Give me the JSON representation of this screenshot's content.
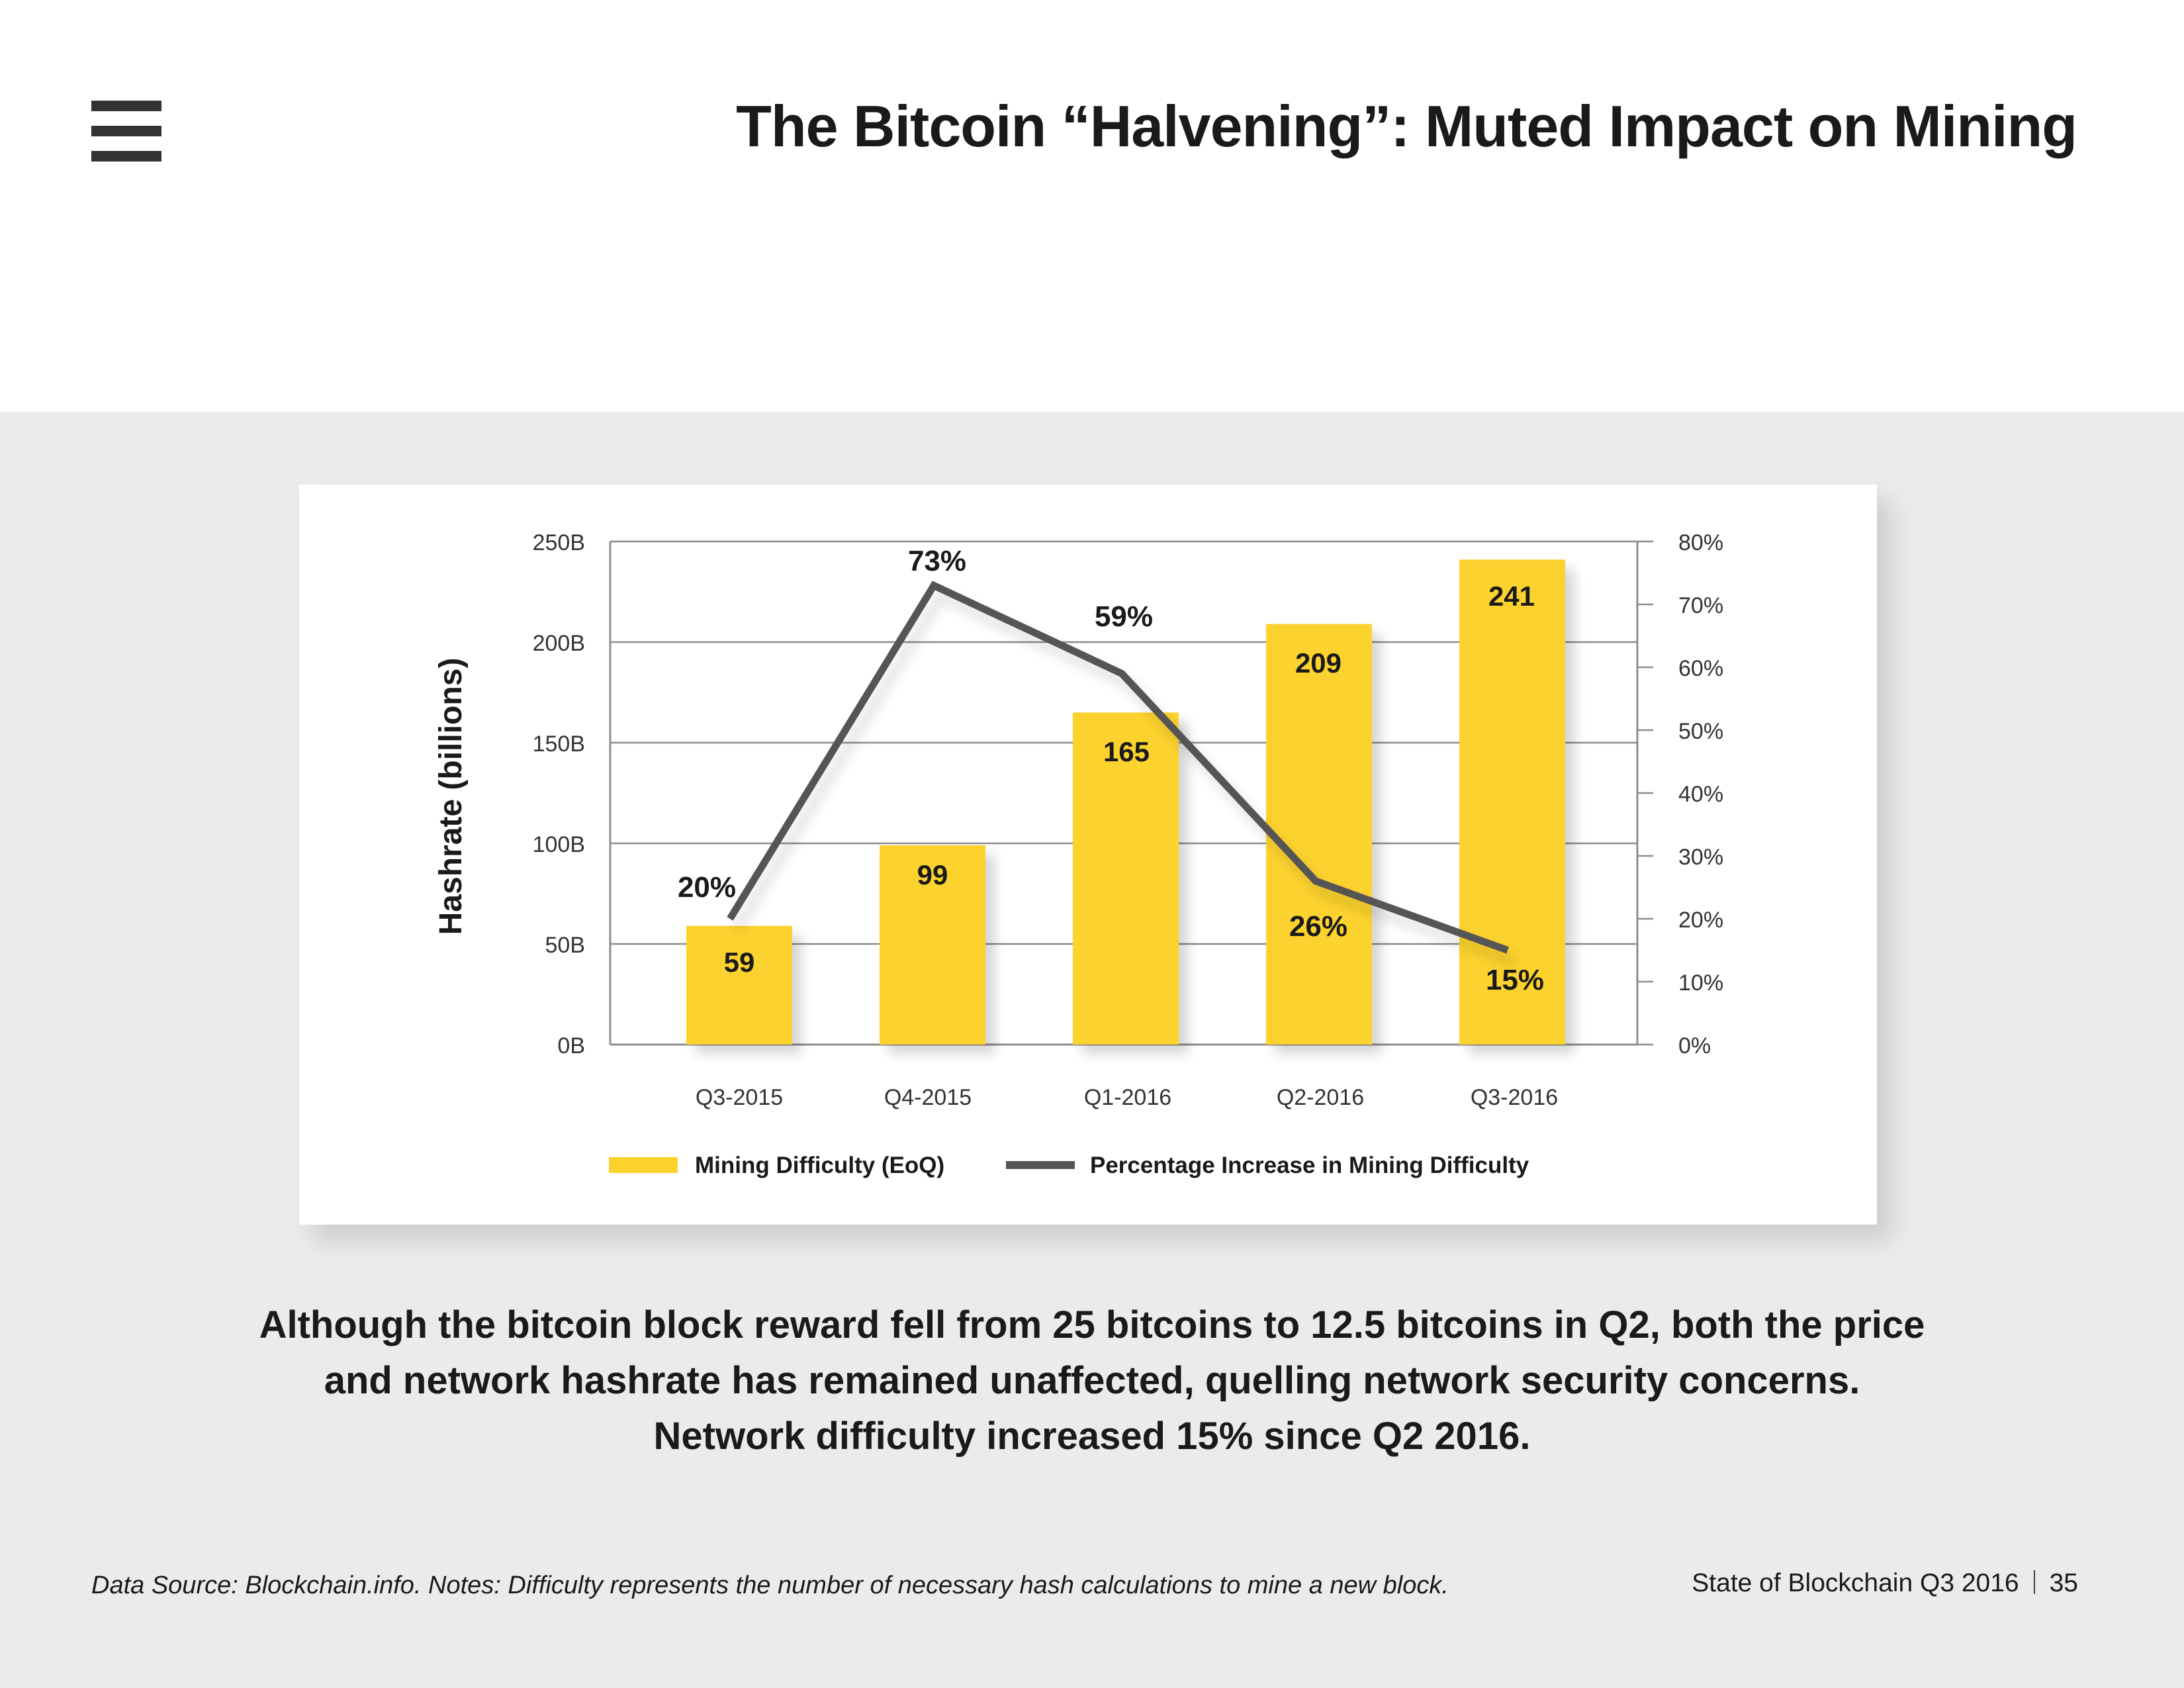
{
  "header": {
    "menu_icon": "hamburger-menu-icon",
    "title": "The Bitcoin “Halvening”: Muted Impact on Mining"
  },
  "chart_data": {
    "type": "bar",
    "categories": [
      "Q3-2015",
      "Q4-2015",
      "Q1-2016",
      "Q2-2016",
      "Q3-2016"
    ],
    "series": [
      {
        "name": "Mining Difficulty (EoQ)",
        "type": "bar",
        "axis": "left",
        "values": [
          59,
          99,
          165,
          209,
          241
        ],
        "labels": [
          "59",
          "99",
          "165",
          "209",
          "241"
        ],
        "color": "#fcd22e"
      },
      {
        "name": "Percentage Increase in Mining Difficulty",
        "type": "line",
        "axis": "right",
        "values": [
          20,
          73,
          59,
          26,
          15
        ],
        "labels": [
          "20%",
          "73%",
          "59%",
          "26%",
          "15%"
        ],
        "color": "#555555"
      }
    ],
    "ylabel": "Hashrate (billions)",
    "ylim": [
      0,
      250
    ],
    "yticks": [
      0,
      50,
      100,
      150,
      200,
      250
    ],
    "ytick_labels": [
      "0B",
      "50B",
      "100B",
      "150B",
      "200B",
      "250B"
    ],
    "y2lim": [
      0,
      80
    ],
    "y2ticks": [
      0,
      10,
      20,
      30,
      40,
      50,
      60,
      70,
      80
    ],
    "y2tick_labels": [
      "0%",
      "10%",
      "20%",
      "30%",
      "40%",
      "50%",
      "60%",
      "70%",
      "80%"
    ],
    "grid": true,
    "legend_position": "bottom"
  },
  "summary": {
    "lines": [
      "Although the bitcoin block reward fell from 25 bitcoins to 12.5 bitcoins in Q2, both the price",
      "and network hashrate has remained unaffected, quelling network security concerns.",
      "Network difficulty increased 15% since Q2 2016."
    ]
  },
  "footer": {
    "source_note": "Data Source: Blockchain.info. Notes: Difficulty represents the number of necessary hash calculations to mine a new block.",
    "publication": "State of Blockchain Q3 2016",
    "page_number": "35"
  }
}
